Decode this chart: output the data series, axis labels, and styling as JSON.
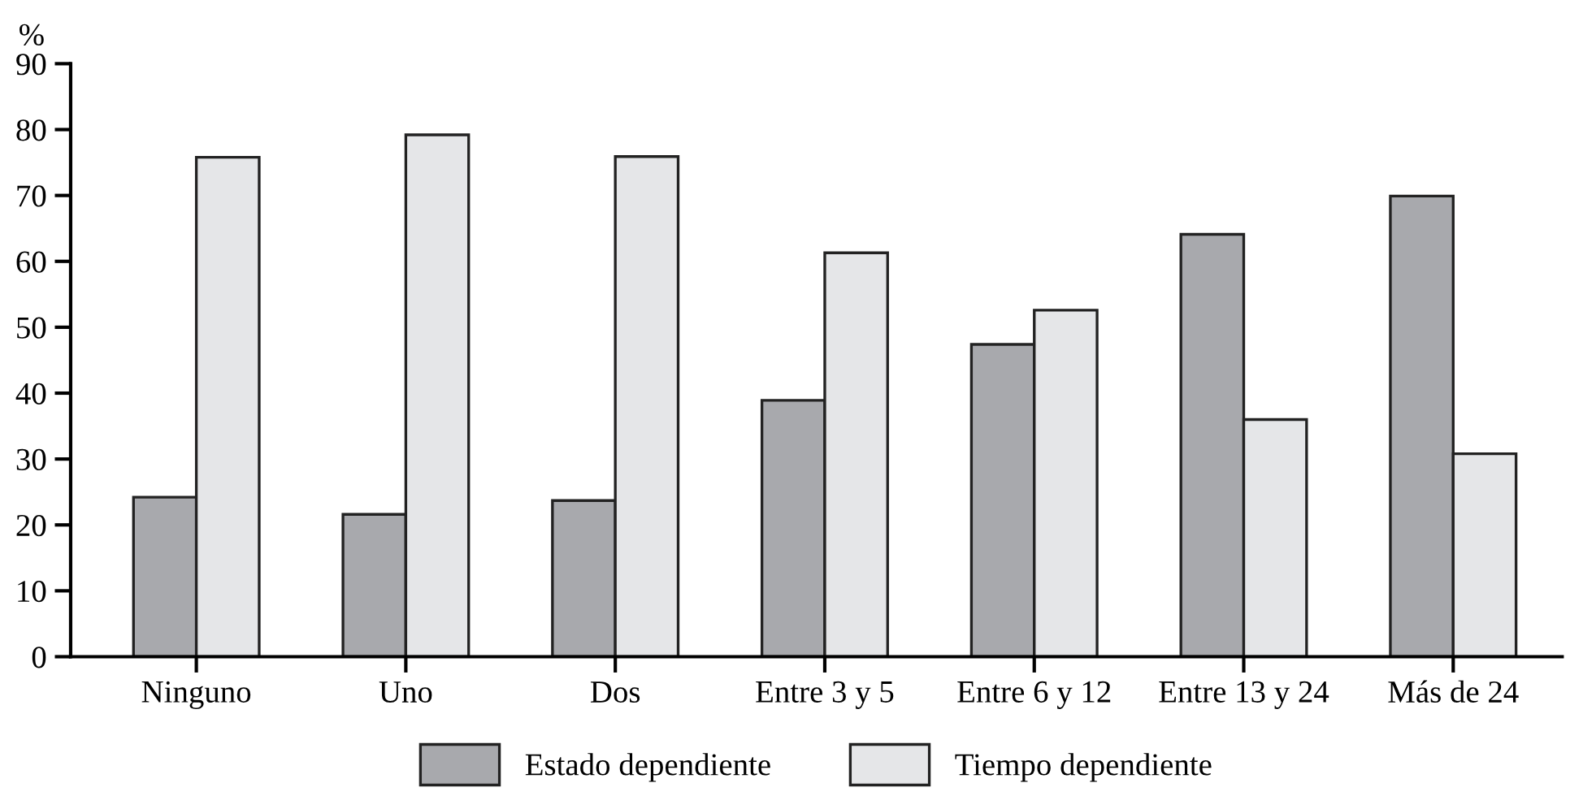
{
  "chart_data": {
    "type": "bar",
    "ylabel": "%",
    "categories": [
      "Ninguno",
      "Uno",
      "Dos",
      "Entre 3 y 5",
      "Entre 6 y 12",
      "Entre 13 y 24",
      "Más de 24"
    ],
    "series": [
      {
        "name": "Estado dependiente",
        "color": "#a8a9ad",
        "values": [
          24.2,
          21.6,
          23.7,
          38.9,
          47.4,
          64.1,
          69.9
        ]
      },
      {
        "name": "Tiempo dependiente",
        "color": "#e5e6e8",
        "values": [
          75.8,
          79.2,
          75.9,
          61.3,
          52.6,
          36.0,
          30.8
        ]
      }
    ],
    "ylim": [
      0,
      90
    ],
    "yticks": [
      0,
      10,
      20,
      30,
      40,
      50,
      60,
      70,
      80,
      90
    ],
    "grid": false,
    "legend": "bottom"
  }
}
